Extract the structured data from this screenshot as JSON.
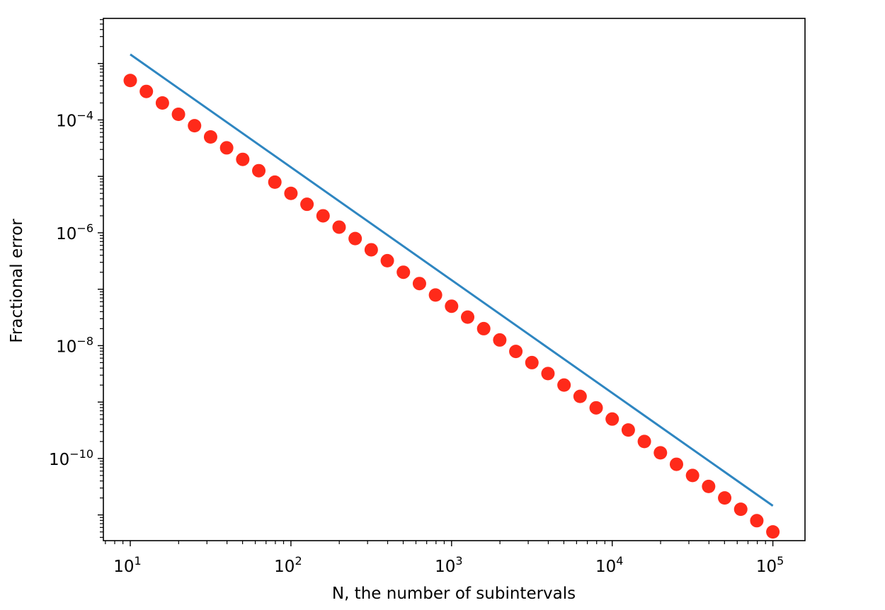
{
  "chart_data": {
    "type": "scatter",
    "title": "",
    "xlabel": "N, the number of subintervals",
    "ylabel": "Fractional error",
    "xscale": "log",
    "yscale": "log",
    "xlim": [
      6.8,
      158489
    ],
    "ylim": [
      3.5e-12,
      0.0063
    ],
    "grid": false,
    "legend": "none",
    "x_ticks": [
      {
        "value": 10,
        "base": "10",
        "exp": "1"
      },
      {
        "value": 100,
        "base": "10",
        "exp": "2"
      },
      {
        "value": 1000,
        "base": "10",
        "exp": "3"
      },
      {
        "value": 10000,
        "base": "10",
        "exp": "4"
      },
      {
        "value": 100000,
        "base": "10",
        "exp": "5"
      }
    ],
    "y_ticks": [
      {
        "value": 0.0001,
        "base": "10",
        "exp": "−4"
      },
      {
        "value": 1e-06,
        "base": "10",
        "exp": "−6"
      },
      {
        "value": 1e-08,
        "base": "10",
        "exp": "−8"
      },
      {
        "value": 1e-10,
        "base": "10",
        "exp": "−10"
      }
    ],
    "series": [
      {
        "kind": "points",
        "color": "#ff2a1a",
        "x": [
          10,
          12.59,
          15.85,
          19.95,
          25.12,
          31.62,
          39.81,
          50.12,
          63.1,
          79.43,
          100,
          125.9,
          158.5,
          199.5,
          251.2,
          316.2,
          398.1,
          501.2,
          631,
          794.3,
          1000,
          1259,
          1585,
          1995,
          2512,
          3162,
          3981,
          5012,
          6310,
          7943,
          10000,
          12589,
          15849,
          19953,
          25119,
          31623,
          39811,
          50119,
          63096,
          79433,
          100000
        ],
        "y": [
          0.0005,
          0.00032,
          0.0002,
          0.000126,
          7.9e-05,
          5e-05,
          3.2e-05,
          2e-05,
          1.26e-05,
          7.9e-06,
          5e-06,
          3.2e-06,
          2e-06,
          1.26e-06,
          7.9e-07,
          5e-07,
          3.2e-07,
          2e-07,
          1.26e-07,
          7.9e-08,
          5e-08,
          3.2e-08,
          2e-08,
          1.26e-08,
          7.9e-09,
          5e-09,
          3.2e-09,
          2e-09,
          1.26e-09,
          7.9e-10,
          5e-10,
          3.2e-10,
          2e-10,
          1.26e-10,
          7.9e-11,
          5e-11,
          3.2e-11,
          2e-11,
          1.26e-11,
          7.9e-12,
          5e-12
        ]
      },
      {
        "kind": "line",
        "color": "#2e86c1",
        "x": [
          10,
          100000
        ],
        "y": [
          0.00145,
          1.45e-11
        ]
      }
    ]
  }
}
